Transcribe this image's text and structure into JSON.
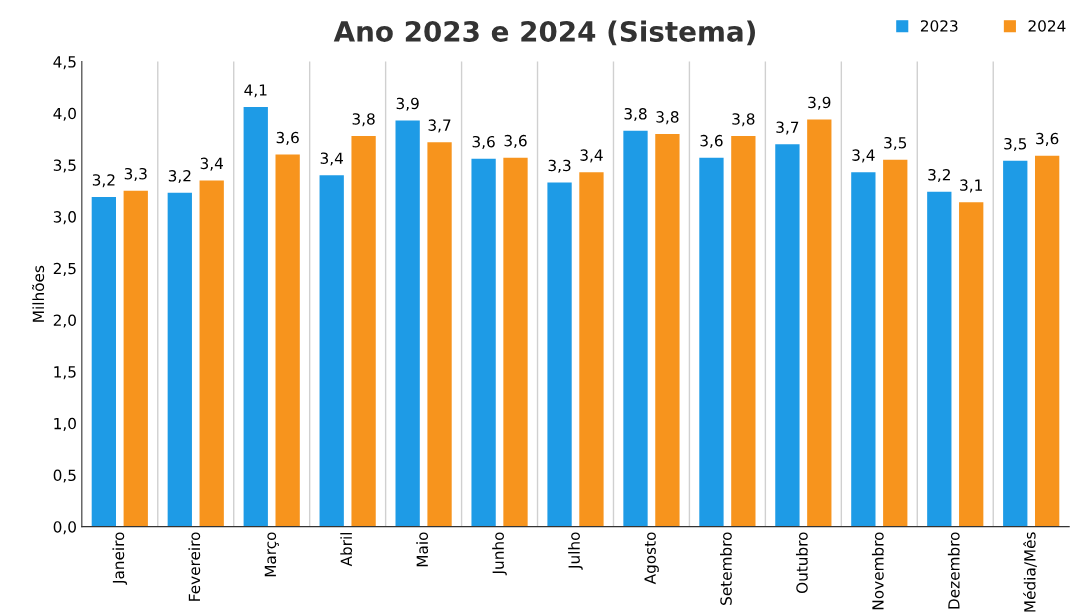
{
  "chart_data": {
    "type": "bar",
    "title": "Ano 2023 e 2024 (Sistema)",
    "ylabel": "Milhões",
    "categories": [
      "Janeiro",
      "Fevereiro",
      "Março",
      "Abril",
      "Maio",
      "Junho",
      "Julho",
      "Agosto",
      "Setembro",
      "Outubro",
      "Novembro",
      "Dezembro",
      "Média/Mês"
    ],
    "series": [
      {
        "name": "2023",
        "color": "#1e9be6",
        "values": [
          3.19,
          3.23,
          4.06,
          3.4,
          3.93,
          3.56,
          3.33,
          3.83,
          3.57,
          3.7,
          3.43,
          3.24,
          3.54
        ],
        "value_labels": [
          "3,2",
          "3,2",
          "4,1",
          "3,4",
          "3,9",
          "3,6",
          "3,3",
          "3,8",
          "3,6",
          "3,7",
          "3,4",
          "3,2",
          "3,5"
        ]
      },
      {
        "name": "2024",
        "color": "#f7941d",
        "values": [
          3.25,
          3.35,
          3.6,
          3.78,
          3.72,
          3.57,
          3.43,
          3.8,
          3.78,
          3.94,
          3.55,
          3.14,
          3.59
        ],
        "value_labels": [
          "3,3",
          "3,4",
          "3,6",
          "3,8",
          "3,7",
          "3,6",
          "3,4",
          "3,8",
          "3,8",
          "3,9",
          "3,5",
          "3,1",
          "3,6"
        ]
      }
    ],
    "ylim": [
      0,
      4.5
    ],
    "yticks": [
      {
        "value": 0,
        "label": "0,0"
      },
      {
        "value": 0.5,
        "label": "0,5"
      },
      {
        "value": 1,
        "label": "1,0"
      },
      {
        "value": 1.5,
        "label": "1,5"
      },
      {
        "value": 2,
        "label": "2,0"
      },
      {
        "value": 2.5,
        "label": "2,5"
      },
      {
        "value": 3,
        "label": "3,0"
      },
      {
        "value": 3.5,
        "label": "3,5"
      },
      {
        "value": 4,
        "label": "4,0"
      },
      {
        "value": 4.5,
        "label": "4,5"
      }
    ],
    "grid": "x",
    "legend": "top right"
  }
}
